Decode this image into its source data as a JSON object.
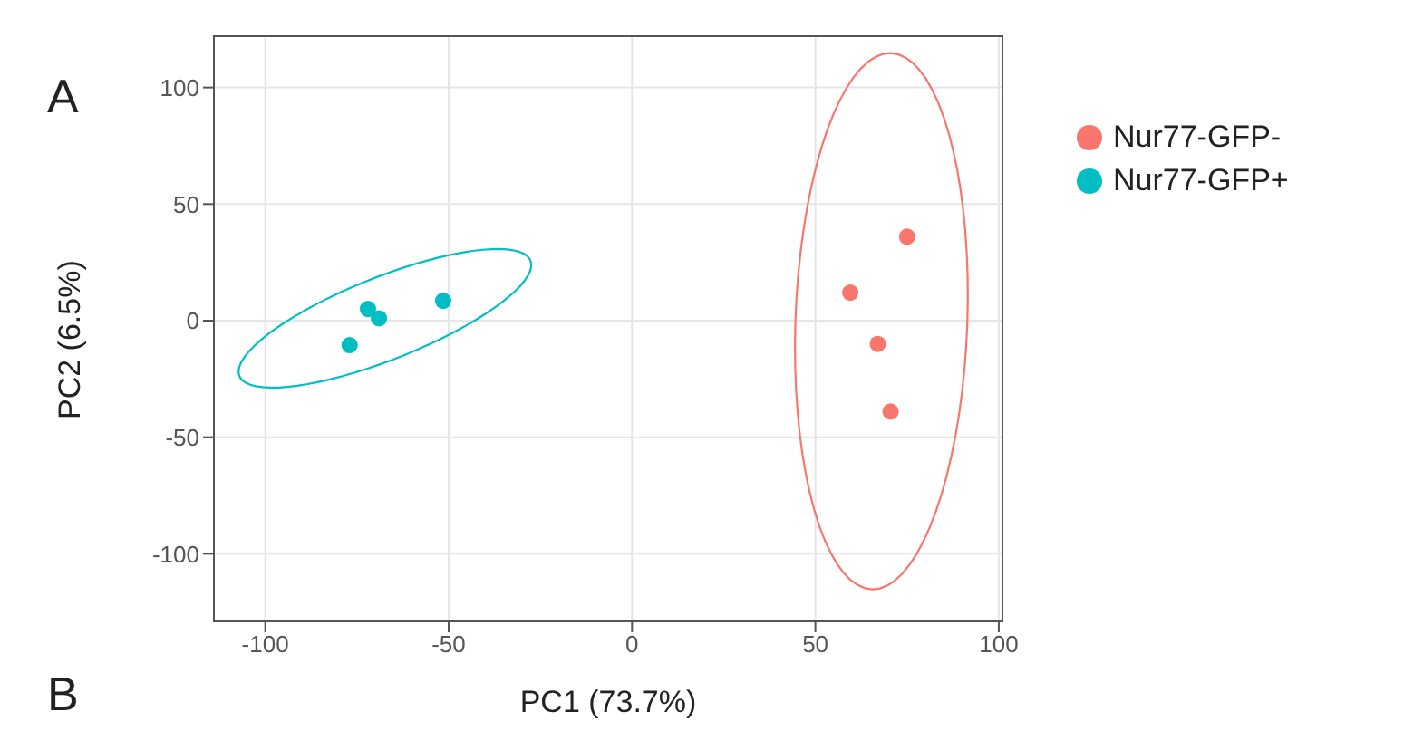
{
  "chart_data": {
    "type": "scatter",
    "xlabel": "PC1 (73.7%)",
    "ylabel": "PC2 (6.5%)",
    "annotations": [
      "A",
      "B"
    ],
    "xlim": [
      -114,
      101
    ],
    "xticks": [
      -100,
      -50,
      0,
      50,
      100
    ],
    "ylim": [
      -129,
      122
    ],
    "yticks": [
      -100,
      -50,
      0,
      50,
      100
    ],
    "grid": true,
    "legend": "top right",
    "marker": "circle",
    "series": [
      {
        "name": "Nur77-GFP-",
        "color": "#f8766d",
        "x": [
          75,
          59.5,
          67,
          70.5
        ],
        "values": [
          36,
          12,
          -10,
          -39
        ]
      },
      {
        "name": "Nur77-GFP+",
        "color": "#00bfc4",
        "x": [
          -77,
          -72,
          -69,
          -51.5
        ],
        "values": [
          -10.5,
          5,
          1,
          8.5
        ]
      }
    ]
  }
}
